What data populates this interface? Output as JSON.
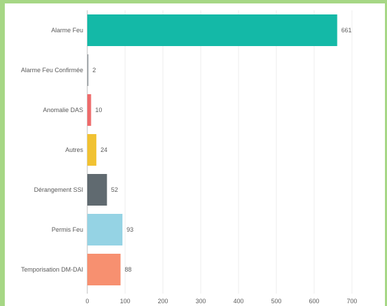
{
  "chart_data": {
    "type": "bar",
    "orientation": "horizontal",
    "categories": [
      "Alarme Feu",
      "Alarme Feu Confirmée",
      "Anomalie DAS",
      "Autres",
      "Dérangement SSI",
      "Permis Feu",
      "Temporisation DM-DAI"
    ],
    "values": [
      661,
      2,
      10,
      24,
      52,
      93,
      88
    ],
    "value_labels": [
      "661",
      "2",
      "10",
      "24",
      "52",
      "93",
      "88"
    ],
    "colors": [
      "#14b9a7",
      "#8f959a",
      "#ee6b6b",
      "#f1c232",
      "#606a70",
      "#95d3e4",
      "#f79070"
    ],
    "xlim": [
      0,
      700
    ],
    "x_ticks": [
      0,
      100,
      200,
      300,
      400,
      500,
      600,
      700
    ],
    "x_tick_labels": [
      "0",
      "100",
      "200",
      "300",
      "400",
      "500",
      "600",
      "700"
    ],
    "grid": true,
    "title": "",
    "xlabel": "",
    "ylabel": ""
  }
}
